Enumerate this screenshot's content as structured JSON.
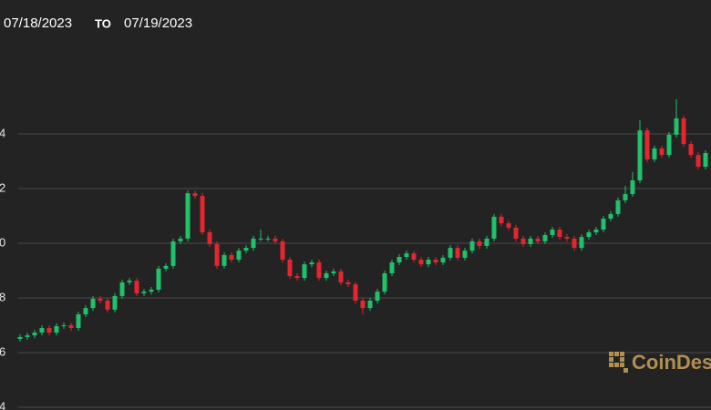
{
  "header": {
    "from": "07/18/2023",
    "to_label": "TO",
    "to": "07/19/2023"
  },
  "watermark": "CoinDesk",
  "chart_data": {
    "type": "candlestick",
    "up_color": "#1fc16b",
    "down_color": "#e3262f",
    "grid": true,
    "ylim": [
      3.9,
      18.9
    ],
    "yticks": [
      4,
      6,
      8,
      {
        "value": 10,
        "label": "0"
      },
      {
        "value": 12,
        "label": "2"
      },
      {
        "value": 14,
        "label": "4"
      }
    ],
    "open": [
      6.5,
      6.57,
      6.63,
      6.73,
      6.9,
      6.73,
      6.97,
      7.0,
      6.9,
      7.4,
      7.63,
      7.97,
      7.9,
      7.57,
      8.07,
      8.57,
      8.63,
      8.17,
      8.23,
      8.3,
      9.07,
      9.17,
      10.07,
      10.17,
      11.83,
      11.73,
      10.4,
      9.97,
      9.17,
      9.57,
      9.4,
      9.73,
      9.83,
      10.17,
      10.17,
      10.17,
      10.07,
      9.4,
      8.8,
      8.73,
      9.23,
      9.3,
      8.73,
      8.9,
      8.97,
      8.57,
      8.5,
      7.9,
      7.63,
      7.9,
      8.23,
      8.9,
      9.3,
      9.5,
      9.63,
      9.4,
      9.23,
      9.4,
      9.3,
      9.47,
      9.83,
      9.47,
      9.73,
      10.07,
      9.9,
      10.17,
      10.97,
      10.73,
      10.57,
      10.17,
      9.97,
      10.17,
      10.07,
      10.3,
      10.5,
      10.23,
      10.17,
      9.83,
      10.23,
      10.4,
      10.5,
      10.9,
      11.07,
      11.57,
      11.8,
      12.3,
      14.13,
      13.07,
      13.47,
      13.23,
      13.97,
      14.57,
      13.63,
      13.23,
      12.8
    ],
    "high": [
      6.67,
      6.73,
      6.83,
      7.0,
      7.0,
      7.07,
      7.1,
      7.1,
      7.5,
      7.73,
      8.07,
      8.07,
      8.0,
      8.17,
      8.67,
      8.73,
      8.73,
      8.33,
      8.4,
      9.17,
      9.27,
      10.17,
      10.27,
      11.93,
      11.93,
      11.83,
      10.5,
      10.07,
      9.67,
      9.67,
      9.83,
      9.93,
      10.27,
      10.5,
      10.27,
      10.27,
      10.17,
      9.5,
      8.9,
      9.33,
      9.4,
      9.4,
      9.0,
      9.07,
      9.07,
      8.67,
      8.6,
      8.0,
      8.0,
      8.33,
      9.0,
      9.4,
      9.6,
      9.73,
      9.73,
      9.5,
      9.5,
      9.5,
      9.57,
      9.93,
      9.93,
      9.83,
      10.17,
      10.17,
      10.27,
      11.07,
      11.07,
      10.83,
      10.67,
      10.27,
      10.27,
      10.27,
      10.4,
      10.6,
      10.6,
      10.33,
      10.27,
      10.33,
      10.5,
      10.6,
      11.0,
      11.17,
      11.67,
      12.1,
      12.6,
      14.5,
      14.23,
      13.57,
      13.57,
      14.07,
      15.27,
      14.67,
      13.73,
      13.33,
      13.4
    ],
    "low": [
      6.4,
      6.47,
      6.53,
      6.63,
      6.63,
      6.63,
      6.87,
      6.8,
      6.8,
      7.3,
      7.53,
      7.8,
      7.47,
      7.47,
      7.97,
      8.47,
      8.07,
      8.07,
      8.13,
      8.2,
      8.97,
      9.07,
      9.97,
      10.07,
      11.63,
      10.3,
      9.87,
      9.07,
      9.07,
      9.3,
      9.3,
      9.63,
      9.73,
      10.07,
      10.07,
      9.97,
      9.3,
      8.7,
      8.63,
      8.63,
      9.13,
      8.63,
      8.63,
      8.8,
      8.47,
      8.4,
      7.8,
      7.4,
      7.53,
      7.8,
      8.13,
      8.8,
      9.2,
      9.4,
      9.3,
      9.13,
      9.13,
      9.2,
      9.2,
      9.37,
      9.37,
      9.37,
      9.63,
      9.8,
      9.8,
      10.07,
      10.63,
      10.47,
      10.07,
      9.87,
      9.87,
      9.97,
      9.97,
      10.2,
      10.13,
      10.07,
      9.73,
      9.73,
      10.13,
      10.3,
      10.4,
      10.8,
      10.97,
      11.47,
      11.7,
      12.2,
      12.97,
      12.97,
      13.13,
      13.13,
      13.87,
      13.53,
      13.13,
      12.7,
      12.7
    ],
    "close": [
      6.57,
      6.63,
      6.73,
      6.9,
      6.73,
      6.97,
      7.0,
      6.9,
      7.4,
      7.63,
      7.97,
      7.9,
      7.57,
      8.07,
      8.57,
      8.63,
      8.17,
      8.23,
      8.3,
      9.07,
      9.17,
      10.07,
      10.17,
      11.83,
      11.73,
      10.4,
      9.97,
      9.17,
      9.57,
      9.4,
      9.73,
      9.83,
      10.17,
      10.17,
      10.17,
      10.07,
      9.4,
      8.8,
      8.73,
      9.23,
      9.3,
      8.73,
      8.9,
      8.97,
      8.57,
      8.5,
      7.9,
      7.63,
      7.9,
      8.23,
      8.9,
      9.3,
      9.5,
      9.63,
      9.4,
      9.23,
      9.4,
      9.3,
      9.47,
      9.83,
      9.47,
      9.73,
      10.07,
      9.9,
      10.17,
      10.97,
      10.73,
      10.57,
      10.17,
      9.97,
      10.17,
      10.07,
      10.3,
      10.5,
      10.23,
      10.17,
      9.83,
      10.23,
      10.4,
      10.5,
      10.9,
      11.07,
      11.57,
      11.8,
      12.3,
      14.13,
      13.07,
      13.47,
      13.23,
      13.97,
      14.57,
      13.63,
      13.23,
      12.8,
      13.3
    ]
  }
}
